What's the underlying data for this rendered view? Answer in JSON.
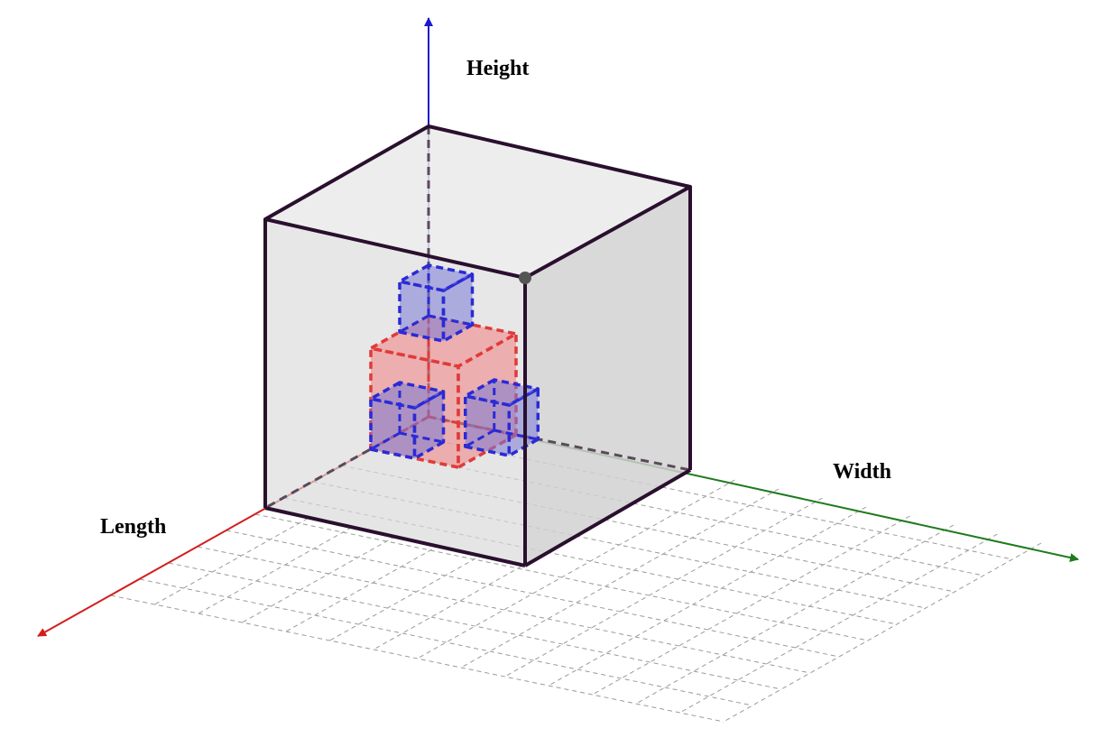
{
  "axes": {
    "height_label": "Height",
    "width_label": "Width",
    "length_label": "Length"
  },
  "colors": {
    "height_axis": "#1a1acc",
    "width_axis": "#1f7a1f",
    "length_axis": "#d41c1c",
    "cube_edge": "#2a0f2e",
    "cube_face": "#cfcfcf",
    "grid": "#9a9a9a",
    "red_cube": "#f08080",
    "blue_cube": "#7a7ad6",
    "point": "#555555"
  },
  "scene": {
    "container": "open-box",
    "small_cubes": [
      {
        "color": "red",
        "role": "center"
      },
      {
        "color": "blue",
        "role": "top"
      },
      {
        "color": "blue",
        "role": "left"
      },
      {
        "color": "blue",
        "role": "right"
      }
    ]
  }
}
